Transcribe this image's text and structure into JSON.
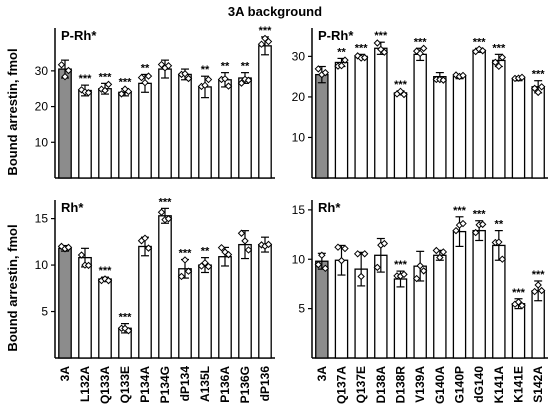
{
  "figure": {
    "title": "3A background",
    "ylabel": "Bound arrestin, fmol"
  },
  "chart_data": [
    {
      "type": "bar",
      "panel": "top-left",
      "label": "P-Rh*",
      "categories": [
        "3A",
        "L132A",
        "Q133A",
        "Q133E",
        "P134A",
        "P134G",
        "dP134",
        "A135L",
        "P136A",
        "P136G",
        "dP136"
      ],
      "values": [
        30.5,
        24.5,
        25.0,
        24.0,
        26.5,
        30.5,
        29.0,
        25.5,
        27.5,
        28.0,
        37.0
      ],
      "errors": [
        2.5,
        1.5,
        1.5,
        1.0,
        2.5,
        2.5,
        1.5,
        3.0,
        2.0,
        1.5,
        2.5
      ],
      "significance": [
        "",
        "***",
        "***",
        "***",
        "**",
        "",
        "",
        "**",
        "**",
        "**",
        "***"
      ],
      "highlight_index": 0,
      "ylim": [
        0,
        42
      ],
      "yticks": [
        10,
        20,
        30
      ]
    },
    {
      "type": "bar",
      "panel": "top-right",
      "label": "P-Rh*",
      "categories": [
        "3A",
        "Q137A",
        "Q137E",
        "D138A",
        "D138R",
        "V139A",
        "G140A",
        "G140P",
        "dG140",
        "K141A",
        "K141E",
        "S142A"
      ],
      "values": [
        25.5,
        28.5,
        30.0,
        32.0,
        21.0,
        30.5,
        25.0,
        25.0,
        31.5,
        29.0,
        24.5,
        22.5
      ],
      "errors": [
        2.0,
        1.0,
        0.5,
        1.5,
        0.5,
        1.5,
        1.0,
        0.5,
        0.5,
        1.5,
        0.5,
        1.5
      ],
      "significance": [
        "",
        "**",
        "***",
        "***",
        "***",
        "***",
        "",
        "",
        "***",
        "***",
        "",
        "***"
      ],
      "highlight_index": 0,
      "ylim": [
        0,
        37
      ],
      "yticks": [
        10,
        20,
        30
      ]
    },
    {
      "type": "bar",
      "panel": "bottom-left",
      "label": "Rh*",
      "categories": [
        "3A",
        "L132A",
        "Q133A",
        "Q133E",
        "P134A",
        "P134G",
        "dP134",
        "A135L",
        "P136A",
        "P136G",
        "dP136"
      ],
      "values": [
        11.8,
        10.8,
        8.5,
        3.2,
        12.0,
        15.3,
        9.6,
        10.0,
        10.9,
        12.2,
        12.2
      ],
      "errors": [
        0.3,
        1.0,
        0.2,
        0.5,
        1.0,
        0.8,
        1.0,
        0.8,
        1.0,
        1.5,
        0.8
      ],
      "significance": [
        "",
        "",
        "***",
        "***",
        "",
        "***",
        "***",
        "**",
        "",
        "",
        ""
      ],
      "highlight_index": 0,
      "ylim": [
        0,
        17
      ],
      "yticks": [
        5,
        10,
        15
      ]
    },
    {
      "type": "bar",
      "panel": "bottom-right",
      "label": "Rh*",
      "categories": [
        "3A",
        "Q137A",
        "Q137E",
        "D138A",
        "D138R",
        "V139A",
        "G140A",
        "G140P",
        "dG140",
        "K141A",
        "K141E",
        "S142A"
      ],
      "values": [
        9.8,
        9.9,
        9.0,
        10.4,
        8.0,
        9.3,
        10.4,
        12.8,
        12.9,
        11.4,
        5.5,
        6.8
      ],
      "errors": [
        0.8,
        1.5,
        1.7,
        1.7,
        0.8,
        1.5,
        0.5,
        1.5,
        1.0,
        1.5,
        0.5,
        1.0
      ],
      "significance": [
        "",
        "",
        "",
        "",
        "***",
        "",
        "",
        "***",
        "***",
        "**",
        "***",
        "***"
      ],
      "highlight_index": 0,
      "ylim": [
        0,
        16
      ],
      "yticks": [
        5,
        10,
        15
      ]
    }
  ]
}
